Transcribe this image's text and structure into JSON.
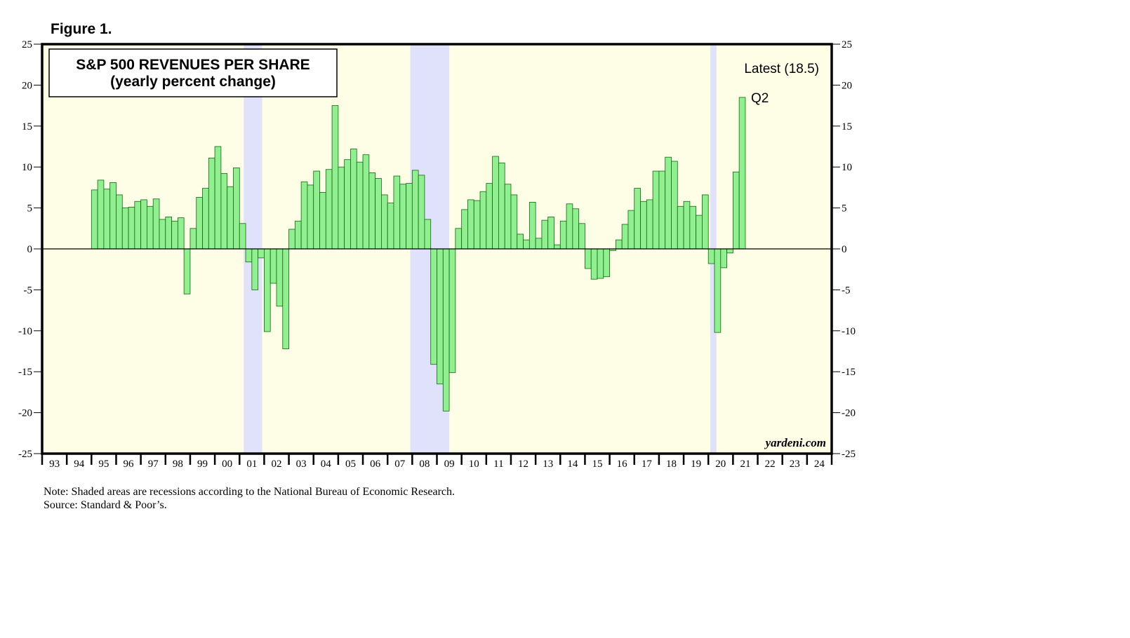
{
  "figure_label": "Figure 1.",
  "notes": {
    "note": "Note: Shaded areas are recessions according to the National Bureau of Economic Research.",
    "source": "Source: Standard & Poor’s."
  },
  "colors": {
    "plot_bg": "#fefde6",
    "recession": "#e0e2fb",
    "bar_fill": "#90f090",
    "bar_stroke": "#116611",
    "frame": "#000000"
  },
  "chart_data": {
    "type": "bar",
    "title": "S&P 500 REVENUES PER SHARE",
    "subtitle": "(yearly percent change)",
    "ylim": [
      -25,
      25
    ],
    "y_ticks": [
      25,
      20,
      15,
      10,
      5,
      0,
      -5,
      -10,
      -15,
      -20,
      -25
    ],
    "x_range": [
      1993.0,
      2025.0
    ],
    "year_labels": [
      "93",
      "94",
      "95",
      "96",
      "97",
      "98",
      "99",
      "00",
      "01",
      "02",
      "03",
      "04",
      "05",
      "06",
      "07",
      "08",
      "09",
      "10",
      "11",
      "12",
      "13",
      "14",
      "15",
      "16",
      "17",
      "18",
      "19",
      "20",
      "21",
      "22",
      "23",
      "24"
    ],
    "source_label": "yardeni.com",
    "annotations": {
      "latest": "Latest (18.5)",
      "last_period": "Q2"
    },
    "recessions": [
      [
        2001.17,
        2001.92
      ],
      [
        2007.92,
        2009.5
      ],
      [
        2020.08,
        2020.33
      ]
    ],
    "series": [
      {
        "name": "S&P 500 revenues per share, yearly % change",
        "frequency": "quarterly",
        "start": 1995.0,
        "values": [
          7.2,
          8.4,
          7.3,
          8.1,
          6.6,
          5.0,
          5.1,
          5.8,
          6.0,
          5.2,
          6.1,
          3.6,
          3.9,
          3.4,
          3.8,
          -5.5,
          2.5,
          6.3,
          7.4,
          11.1,
          12.5,
          9.2,
          7.6,
          9.9,
          3.1,
          -1.6,
          -5.0,
          -1.1,
          -10.1,
          -4.2,
          -7.0,
          -12.2,
          2.4,
          3.4,
          8.2,
          7.8,
          9.5,
          6.9,
          9.7,
          17.5,
          10.0,
          10.9,
          12.2,
          10.6,
          11.5,
          9.3,
          8.6,
          6.6,
          5.6,
          8.9,
          7.9,
          8.0,
          9.6,
          9.0,
          3.6,
          -14.1,
          -16.5,
          -19.8,
          -15.1,
          2.5,
          4.8,
          6.0,
          5.9,
          7.0,
          8.0,
          11.3,
          10.5,
          7.9,
          6.6,
          1.8,
          1.1,
          5.7,
          1.3,
          3.5,
          3.9,
          0.5,
          3.4,
          5.5,
          4.9,
          3.1,
          -2.4,
          -3.7,
          -3.6,
          -3.4,
          -0.2,
          1.1,
          3.0,
          4.7,
          7.4,
          5.8,
          6.0,
          9.5,
          9.5,
          11.2,
          10.7,
          5.2,
          5.8,
          5.2,
          4.1,
          6.6,
          -1.8,
          -10.2,
          -2.3,
          -0.5,
          9.4,
          18.5
        ]
      }
    ]
  }
}
